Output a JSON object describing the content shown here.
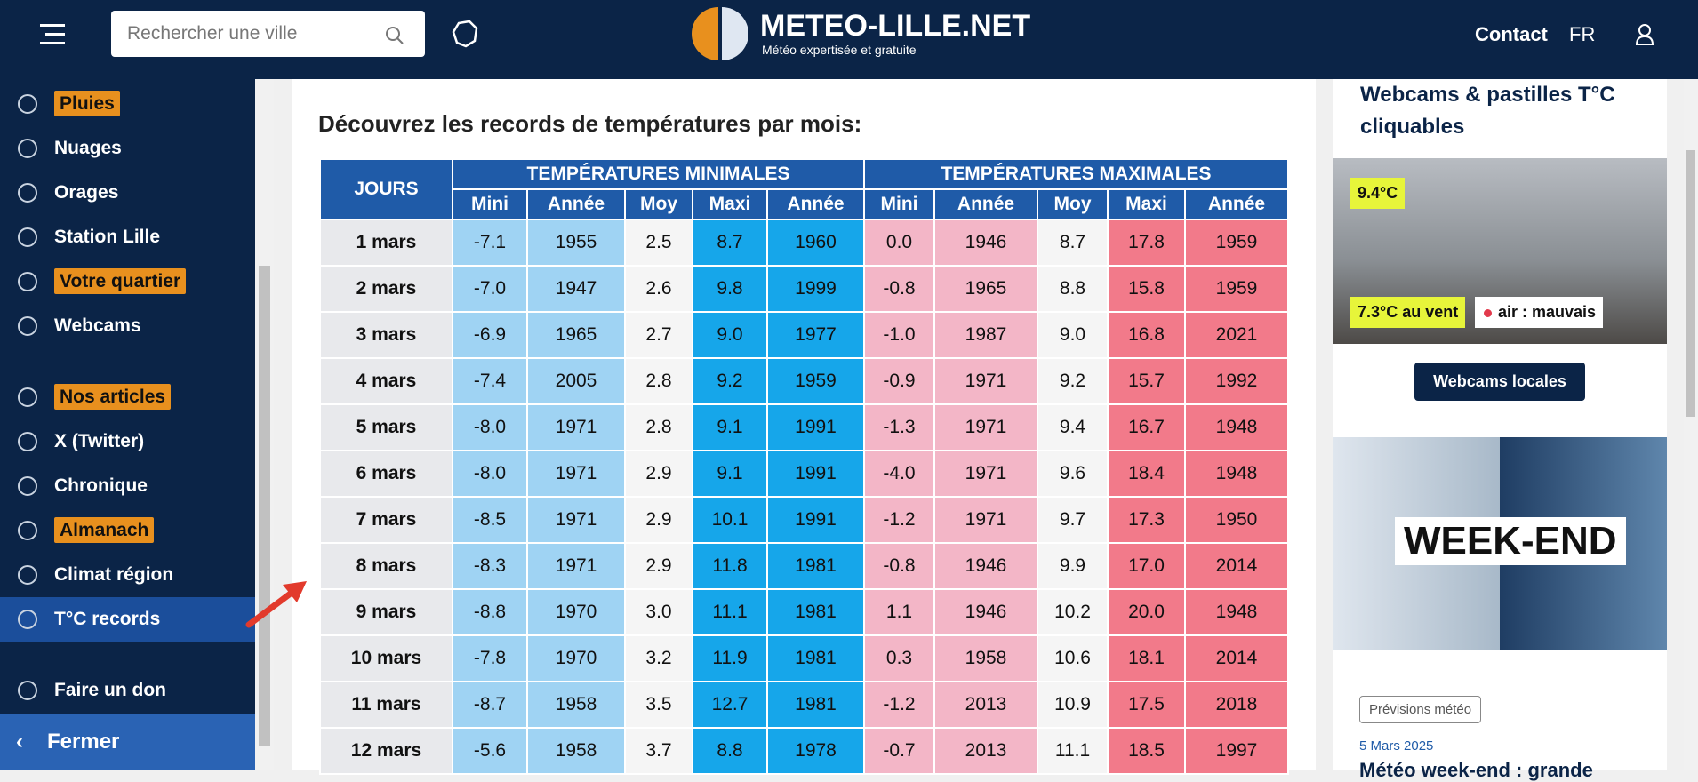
{
  "header": {
    "search_placeholder": "Rechercher une ville",
    "logo_title": "METEO-LILLE.NET",
    "logo_tagline": "Météo expertisée et gratuite",
    "contact": "Contact",
    "lang": "FR"
  },
  "nav": {
    "items": [
      {
        "label": "Pluies",
        "badge": true
      },
      {
        "label": "Nuages",
        "badge": false
      },
      {
        "label": "Orages",
        "badge": false
      },
      {
        "label": "Station Lille",
        "badge": false
      },
      {
        "label": "Votre quartier",
        "badge": true
      },
      {
        "label": "Webcams",
        "badge": false
      },
      {
        "label": "Nos articles",
        "badge": true,
        "gap": true
      },
      {
        "label": "X (Twitter)",
        "badge": false
      },
      {
        "label": "Chronique",
        "badge": false
      },
      {
        "label": "Almanach",
        "badge": true
      },
      {
        "label": "Climat région",
        "badge": false
      },
      {
        "label": "T°C records",
        "badge": false,
        "active": true
      },
      {
        "label": "Faire un don",
        "badge": false,
        "gap": true
      }
    ],
    "close": "Fermer"
  },
  "main": {
    "title": "Découvrez les records de températures par mois:"
  },
  "table": {
    "day_header": "JOURS",
    "group_headers": [
      "TEMPÉRATURES MINIMALES",
      "TEMPÉRATURES MAXIMALES"
    ],
    "sub_headers": [
      "Mini",
      "Année",
      "Moy",
      "Maxi",
      "Année",
      "Mini",
      "Année",
      "Moy",
      "Maxi",
      "Année"
    ],
    "rows": [
      [
        "1 mars",
        "-7.1",
        "1955",
        "2.5",
        "8.7",
        "1960",
        "0.0",
        "1946",
        "8.7",
        "17.8",
        "1959"
      ],
      [
        "2 mars",
        "-7.0",
        "1947",
        "2.6",
        "9.8",
        "1999",
        "-0.8",
        "1965",
        "8.8",
        "15.8",
        "1959"
      ],
      [
        "3 mars",
        "-6.9",
        "1965",
        "2.7",
        "9.0",
        "1977",
        "-1.0",
        "1987",
        "9.0",
        "16.8",
        "2021"
      ],
      [
        "4 mars",
        "-7.4",
        "2005",
        "2.8",
        "9.2",
        "1959",
        "-0.9",
        "1971",
        "9.2",
        "15.7",
        "1992"
      ],
      [
        "5 mars",
        "-8.0",
        "1971",
        "2.8",
        "9.1",
        "1991",
        "-1.3",
        "1971",
        "9.4",
        "16.7",
        "1948"
      ],
      [
        "6 mars",
        "-8.0",
        "1971",
        "2.9",
        "9.1",
        "1991",
        "-4.0",
        "1971",
        "9.6",
        "18.4",
        "1948"
      ],
      [
        "7 mars",
        "-8.5",
        "1971",
        "2.9",
        "10.1",
        "1991",
        "-1.2",
        "1971",
        "9.7",
        "17.3",
        "1950"
      ],
      [
        "8 mars",
        "-8.3",
        "1971",
        "2.9",
        "11.8",
        "1981",
        "-0.8",
        "1946",
        "9.9",
        "17.0",
        "2014"
      ],
      [
        "9 mars",
        "-8.8",
        "1970",
        "3.0",
        "11.1",
        "1981",
        "1.1",
        "1946",
        "10.2",
        "20.0",
        "1948"
      ],
      [
        "10 mars",
        "-7.8",
        "1970",
        "3.2",
        "11.9",
        "1981",
        "0.3",
        "1958",
        "10.6",
        "18.1",
        "2014"
      ],
      [
        "11 mars",
        "-8.7",
        "1958",
        "3.5",
        "12.7",
        "1981",
        "-1.2",
        "2013",
        "10.9",
        "17.5",
        "2018"
      ],
      [
        "12 mars",
        "-5.6",
        "1958",
        "3.7",
        "8.8",
        "1978",
        "-0.7",
        "2013",
        "11.1",
        "18.5",
        "1997"
      ]
    ]
  },
  "aside": {
    "title": "Webcams & pastilles T°C cliquables",
    "webcam_temp": "9.4°C",
    "webcam_wind": "7.3°C au vent",
    "webcam_air": "air : mauvais",
    "button": "Webcams locales",
    "promo": "WEEK-END",
    "tag": "Prévisions météo",
    "date": "5 Mars 2025",
    "article_title": "Météo week-end : grande"
  }
}
